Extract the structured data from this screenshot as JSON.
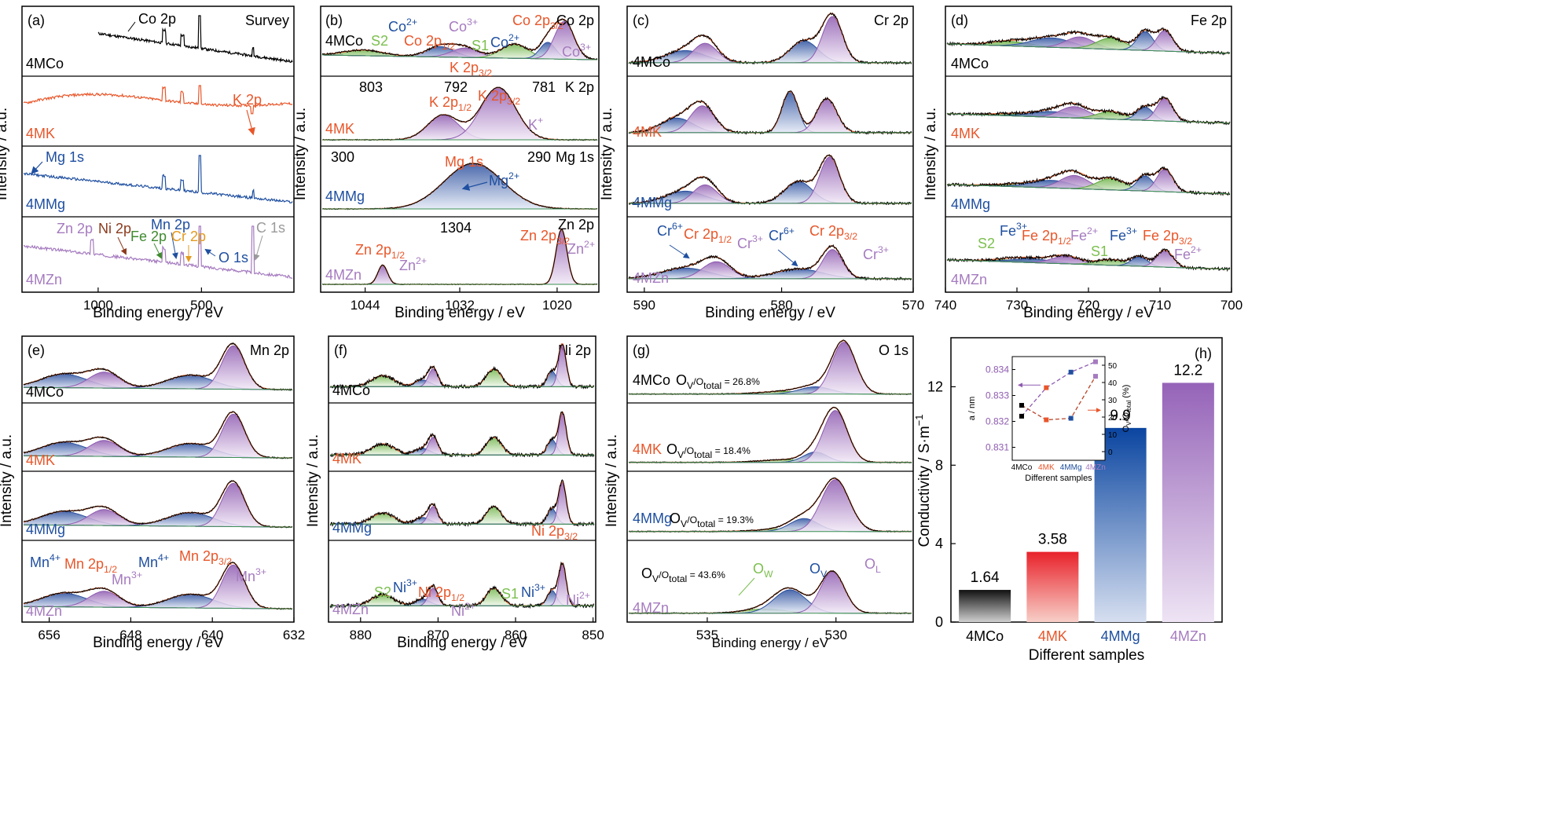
{
  "colors": {
    "mco": "#000000",
    "mk": "#e8562a",
    "mmg": "#1f4fa0",
    "mzn": "#a57bbf",
    "s": "#7cbf4e",
    "fit": "#e06a3c",
    "zn": "#9a9a9a",
    "cr": "#e39a1f",
    "mn": "#1f4fa0",
    "ni": "#8b3a1e",
    "fe": "#3f8a2f"
  },
  "sampleNames": [
    "4MCo",
    "4MK",
    "4MMg",
    "4MZn"
  ],
  "xps": {
    "xlabel": "Binding energy / eV",
    "ylabel": "Intensity / a.u."
  },
  "panels": {
    "a": {
      "letter": "(a)",
      "title": "Survey",
      "ticks": [
        "1000",
        "500"
      ],
      "labels": {
        "co2p": "Co 2p",
        "k2p": "K 2p",
        "mg1s": "Mg 1s",
        "zn2p": "Zn 2p",
        "ni2p": "Ni 2p",
        "fe2p": "Fe 2p",
        "mn2p": "Mn 2p",
        "cr2p": "Cr 2p",
        "o1s": "O 1s",
        "c1s": "C 1s"
      }
    },
    "b": {
      "letter": "(b)",
      "ticks": [
        "1044",
        "1032",
        "1020"
      ],
      "sub": [
        {
          "title": "Co 2p",
          "sample": "4MCo",
          "labels": {
            "s2": "S2",
            "co2p12": "Co 2p",
            "co2p12s": "1/2",
            "co2a": "Co",
            "co2as": "2+",
            "co3a": "Co",
            "co3as": "3+",
            "s1": "S1",
            "co2b": "Co",
            "co2bs": "2+",
            "co2p32": "Co 2p",
            "co2p32s": "3/2",
            "co3b": "Co",
            "co3bs": "3+",
            "k2p32": "K 2p",
            "k2p32s": "3/2"
          }
        },
        {
          "title": "K 2p",
          "sample": "4MK",
          "labels": {
            "t803": "803",
            "t792": "792",
            "t781": "781",
            "k2p12": "K 2p",
            "k2p12s": "1/2",
            "k2p32": "K 2p",
            "k2p32s": "3/2",
            "kp": "K",
            "kps": "+"
          }
        },
        {
          "title": "Mg 1s",
          "sample": "4MMg",
          "labels": {
            "t300": "300",
            "t290": "290",
            "mg1s": "Mg 1s",
            "mg2": "Mg",
            "mg2s": "2+"
          }
        },
        {
          "title": "Zn 2p",
          "sample": "4MZn",
          "labels": {
            "t1304": "1304",
            "zn2p12": "Zn 2p",
            "zn2p12s": "1/2",
            "zna": "Zn",
            "znas": "2+",
            "zn2p32": "Zn 2p",
            "zn2p32s": "3/2",
            "znb": "Zn",
            "znbs": "2+"
          }
        }
      ]
    },
    "c": {
      "letter": "(c)",
      "title": "Cr 2p",
      "ticks": [
        "590",
        "580",
        "570"
      ],
      "labels": {
        "cr6a": "Cr",
        "cr6as": "6+",
        "cr2p12": "Cr 2p",
        "cr2p12s": "1/2",
        "cr3a": "Cr",
        "cr3as": "3+",
        "cr6b": "Cr",
        "cr6bs": "6+",
        "cr2p32": "Cr 2p",
        "cr2p32s": "3/2",
        "cr3b": "Cr",
        "cr3bs": "3+"
      }
    },
    "d": {
      "letter": "(d)",
      "title": "Fe 2p",
      "ticks": [
        "740",
        "730",
        "720",
        "710",
        "700"
      ],
      "labels": {
        "s2": "S2",
        "fe3a": "Fe",
        "fe3as": "3+",
        "fe2p12": "Fe 2p",
        "fe2p12s": "1/2",
        "fe2a": "Fe",
        "fe2as": "2+",
        "s1": "S1",
        "fe3b": "Fe",
        "fe3bs": "3+",
        "fe2p32": "Fe 2p",
        "fe2p32s": "3/2",
        "fe2b": "Fe",
        "fe2bs": "2+"
      }
    },
    "e": {
      "letter": "(e)",
      "title": "Mn 2p",
      "ticks": [
        "656",
        "648",
        "640",
        "632"
      ],
      "labels": {
        "mn4a": "Mn",
        "mn4as": "4+",
        "mn2p12": "Mn 2p",
        "mn2p12s": "1/2",
        "mn3a": "Mn",
        "mn3as": "3+",
        "mn4b": "Mn",
        "mn4bs": "4+",
        "mn2p32": "Mn 2p",
        "mn2p32s": "3/2",
        "mn3b": "Mn",
        "mn3bs": "3+"
      }
    },
    "f": {
      "letter": "(f)",
      "title": "Ni 2p",
      "ticks": [
        "880",
        "870",
        "860",
        "850"
      ],
      "labels": {
        "s2": "S2",
        "ni3a": "Ni",
        "ni3as": "3+",
        "ni2p12": "Ni 2p",
        "ni2p12s": "1/2",
        "ni2a": "Ni",
        "ni2as": "2+",
        "s1": "S1",
        "ni3b": "Ni",
        "ni3bs": "3+",
        "ni2b": "Ni",
        "ni2bs": "2+",
        "ni2p32": "Ni 2p",
        "ni2p32s": "3/2"
      }
    },
    "g": {
      "letter": "(g)",
      "title": "O 1s",
      "ticks": [
        "535",
        "530"
      ],
      "xlabel": "Binding energy /  eV",
      "ov": [
        {
          "pre": "O",
          "sub1": "V",
          "mid": "/O",
          "sub2": "total",
          "val": " = 26.8%"
        },
        {
          "pre": "O",
          "sub1": "V",
          "mid": "/O",
          "sub2": "total",
          "val": " = 18.4%"
        },
        {
          "pre": "O",
          "sub1": "V",
          "mid": "/O",
          "sub2": "total",
          "val": " = 19.3%"
        },
        {
          "pre": "O",
          "sub1": "V",
          "mid": "/O",
          "sub2": "total",
          "val": " = 43.6%"
        }
      ],
      "labels": {
        "ow": "O",
        "ows": "W",
        "ov": "O",
        "ovs": "V",
        "ol": "O",
        "ols": "L"
      }
    }
  },
  "chart_data": [
    {
      "type": "line",
      "title": "Survey",
      "xlabel": "Binding energy / eV",
      "ylabel": "Intensity / a.u.",
      "series": [
        {
          "name": "4MCo"
        },
        {
          "name": "4MK"
        },
        {
          "name": "4MMg"
        },
        {
          "name": "4MZn"
        }
      ]
    },
    {
      "type": "bar",
      "panel": "(h)",
      "xlabel": "Different samples",
      "ylabel": "Conductivity / S·m",
      "ylabel_sup": "−1",
      "categories": [
        "4MCo",
        "4MK",
        "4MMg",
        "4MZn"
      ],
      "values": [
        1.64,
        3.58,
        9.9,
        12.2
      ],
      "value_labels": [
        "1.64",
        "3.58",
        "9.9",
        "12.2"
      ],
      "ylim": [
        0,
        14.5
      ],
      "yticks": [
        0,
        4,
        8,
        12
      ],
      "colors": [
        "#2a2a2a",
        "#e8322a",
        "#1f4fa0",
        "#9d6fbe"
      ],
      "inset": {
        "xlabel": "Different samples",
        "ylabel_left": "a / nm",
        "ylabel_right": "O",
        "ylabel_right_sub": "V",
        "ylabel_right_mid": "/O",
        "ylabel_right_sub2": "total",
        "ylabel_right_unit": " (%)",
        "categories": [
          "4MCo",
          "4MK",
          "4MMg",
          "4MZn"
        ],
        "a_nm": {
          "values": [
            0.8322,
            0.8333,
            0.8339,
            0.8343
          ],
          "ylim": [
            0.8305,
            0.8345
          ],
          "yticks": [
            "0.831",
            "0.832",
            "0.833",
            "0.834"
          ]
        },
        "ov_percent": {
          "values": [
            26.8,
            18.4,
            19.3,
            43.6
          ],
          "ylim": [
            -5,
            55
          ],
          "yticks": [
            "0",
            "10",
            "20",
            "30",
            "40",
            "50"
          ]
        }
      }
    }
  ]
}
